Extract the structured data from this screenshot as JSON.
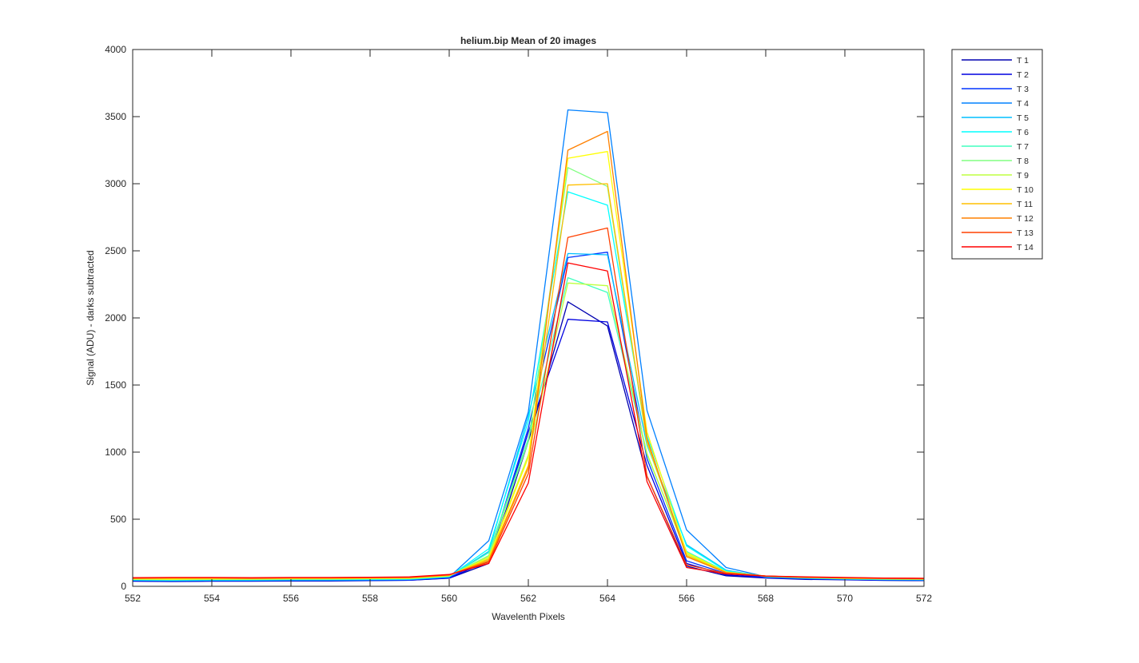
{
  "chart_data": {
    "type": "line",
    "title": "helium.bip  Mean of 20 images",
    "xlabel": "Wavelenth Pixels",
    "ylabel": "Signal (ADU) - darks subtracted",
    "xlim": [
      552,
      572
    ],
    "ylim": [
      0,
      4000
    ],
    "x_ticks": [
      552,
      554,
      556,
      558,
      560,
      562,
      564,
      566,
      568,
      570,
      572
    ],
    "y_ticks": [
      0,
      500,
      1000,
      1500,
      2000,
      2500,
      3000,
      3500,
      4000
    ],
    "grid": false,
    "legend_position": "outside-top-right",
    "x": [
      552,
      553,
      554,
      555,
      556,
      557,
      558,
      559,
      560,
      561,
      562,
      563,
      564,
      565,
      566,
      567,
      568,
      569,
      570,
      571,
      572
    ],
    "series": [
      {
        "name": "T 1",
        "color": "#0000b0",
        "values": [
          38,
          36,
          38,
          38,
          40,
          40,
          42,
          45,
          60,
          170,
          1080,
          2120,
          1940,
          820,
          150,
          78,
          62,
          52,
          48,
          44,
          42
        ]
      },
      {
        "name": "T 2",
        "color": "#0000e0",
        "values": [
          40,
          38,
          40,
          40,
          42,
          42,
          44,
          46,
          62,
          190,
          1150,
          1990,
          1970,
          900,
          170,
          85,
          65,
          55,
          50,
          46,
          44
        ]
      },
      {
        "name": "T 3",
        "color": "#0033ff",
        "values": [
          42,
          40,
          42,
          42,
          44,
          44,
          46,
          48,
          65,
          210,
          1180,
          2450,
          2490,
          950,
          190,
          95,
          68,
          58,
          52,
          48,
          46
        ]
      },
      {
        "name": "T 4",
        "color": "#0080ff",
        "values": [
          45,
          42,
          44,
          44,
          46,
          46,
          48,
          50,
          68,
          340,
          1300,
          3550,
          3530,
          1310,
          420,
          140,
          72,
          62,
          55,
          50,
          48
        ]
      },
      {
        "name": "T 5",
        "color": "#00bfff",
        "values": [
          46,
          44,
          46,
          46,
          48,
          48,
          50,
          52,
          70,
          260,
          1270,
          2480,
          2470,
          1050,
          310,
          120,
          70,
          60,
          54,
          50,
          48
        ]
      },
      {
        "name": "T 6",
        "color": "#00ffff",
        "values": [
          48,
          46,
          48,
          48,
          50,
          50,
          52,
          54,
          72,
          280,
          1230,
          2940,
          2840,
          1120,
          300,
          115,
          72,
          62,
          56,
          52,
          50
        ]
      },
      {
        "name": "T 7",
        "color": "#40ffbf",
        "values": [
          50,
          48,
          50,
          50,
          52,
          52,
          54,
          56,
          74,
          250,
          1100,
          2300,
          2190,
          980,
          260,
          110,
          74,
          64,
          58,
          54,
          52
        ]
      },
      {
        "name": "T 8",
        "color": "#80ff80",
        "values": [
          52,
          50,
          52,
          52,
          54,
          54,
          56,
          58,
          76,
          230,
          1080,
          3120,
          2980,
          1060,
          250,
          108,
          74,
          64,
          58,
          54,
          52
        ]
      },
      {
        "name": "T 9",
        "color": "#bfff40",
        "values": [
          54,
          52,
          54,
          54,
          56,
          56,
          58,
          60,
          78,
          220,
          980,
          2260,
          2240,
          990,
          240,
          105,
          76,
          66,
          60,
          56,
          54
        ]
      },
      {
        "name": "T 10",
        "color": "#ffff00",
        "values": [
          56,
          54,
          56,
          56,
          58,
          58,
          60,
          62,
          80,
          210,
          960,
          3190,
          3240,
          1150,
          250,
          106,
          76,
          66,
          60,
          56,
          54
        ]
      },
      {
        "name": "T 11",
        "color": "#ffbf00",
        "values": [
          58,
          60,
          60,
          58,
          60,
          60,
          62,
          64,
          82,
          200,
          900,
          2990,
          3000,
          1080,
          230,
          104,
          76,
          66,
          62,
          58,
          56
        ]
      },
      {
        "name": "T 12",
        "color": "#ff8000",
        "values": [
          60,
          62,
          62,
          60,
          62,
          62,
          64,
          66,
          84,
          190,
          880,
          3250,
          3390,
          1100,
          220,
          102,
          76,
          68,
          62,
          58,
          56
        ]
      },
      {
        "name": "T 13",
        "color": "#ff4000",
        "values": [
          62,
          64,
          64,
          62,
          64,
          64,
          66,
          68,
          86,
          180,
          840,
          2600,
          2670,
          820,
          160,
          96,
          76,
          68,
          64,
          60,
          58
        ]
      },
      {
        "name": "T 14",
        "color": "#ff0000",
        "values": [
          64,
          66,
          66,
          64,
          66,
          66,
          68,
          70,
          88,
          170,
          770,
          2410,
          2350,
          780,
          140,
          92,
          76,
          70,
          66,
          62,
          60
        ]
      }
    ]
  }
}
